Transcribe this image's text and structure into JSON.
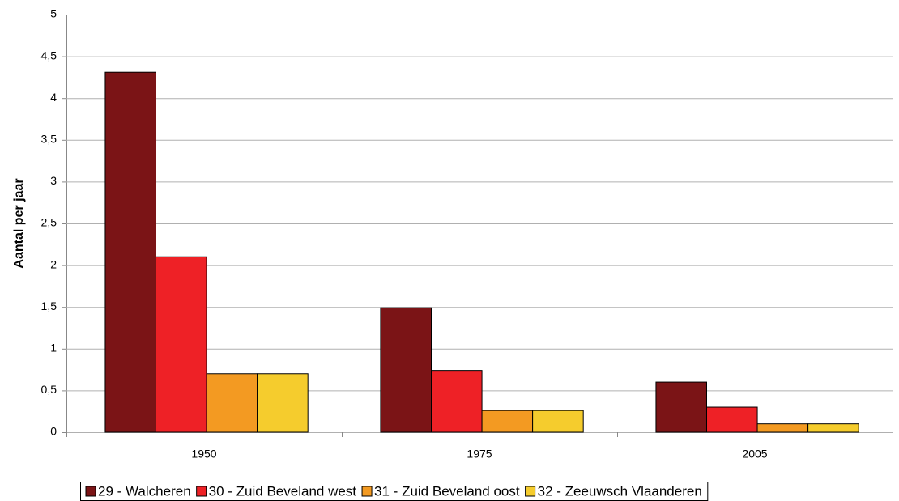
{
  "chart_data": {
    "type": "bar",
    "ylabel": "Aantal per jaar",
    "categories": [
      "1950",
      "1975",
      "2005"
    ],
    "series": [
      {
        "name": "29 - Walcheren",
        "color": "#7b1416",
        "values": [
          4.31,
          1.49,
          0.6
        ]
      },
      {
        "name": "30 - Zuid Beveland west",
        "color": "#ee2126",
        "values": [
          2.1,
          0.74,
          0.3
        ]
      },
      {
        "name": "31 - Zuid Beveland oost",
        "color": "#f39a22",
        "values": [
          0.7,
          0.26,
          0.1
        ]
      },
      {
        "name": "32 - Zeeuwsch Vlaanderen",
        "color": "#f5cc2d",
        "values": [
          0.7,
          0.26,
          0.1
        ]
      }
    ],
    "ylim": [
      0,
      5
    ],
    "yticks": [
      0,
      {
        "value": 0.5,
        "label": "0,5"
      },
      1,
      {
        "value": 1.5,
        "label": "1,5"
      },
      2,
      {
        "value": 2.5,
        "label": "2,5"
      },
      3,
      {
        "value": 3.5,
        "label": "3,5"
      },
      4,
      {
        "value": 4.5,
        "label": "4,5"
      },
      5
    ],
    "grid": true,
    "legend": "bottom"
  }
}
